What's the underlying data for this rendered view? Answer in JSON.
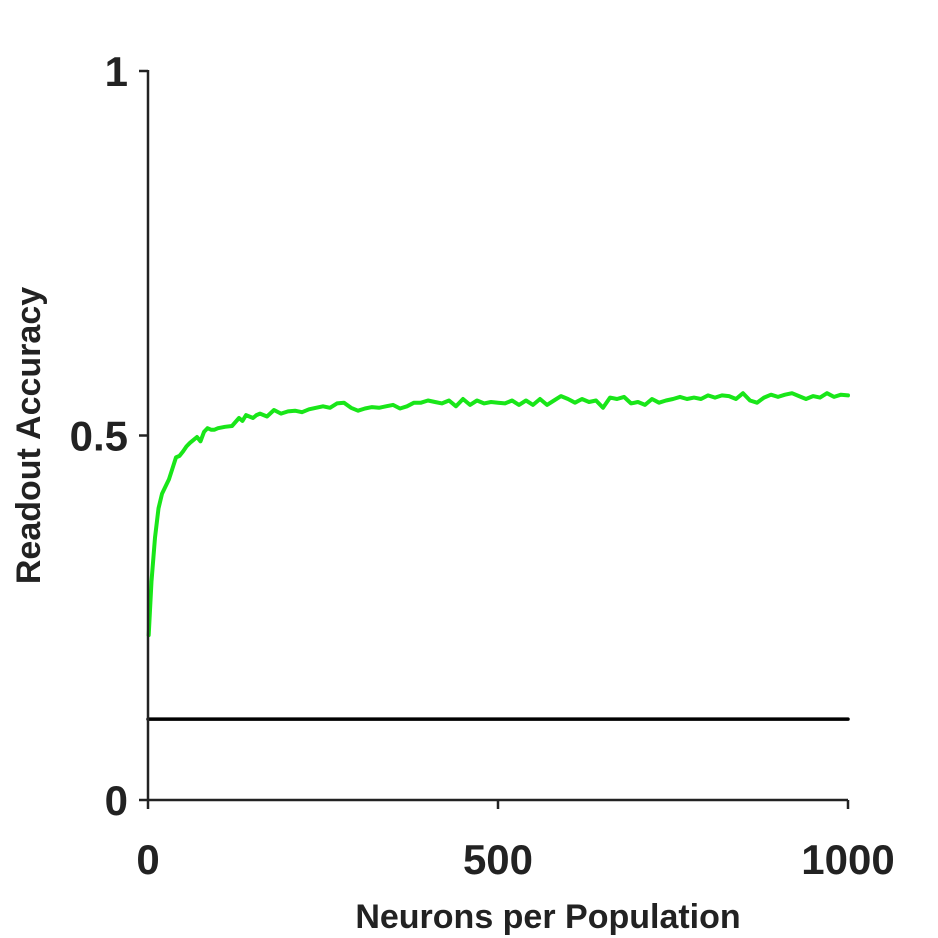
{
  "chart_data": {
    "type": "line",
    "title": "",
    "xlabel": "Neurons per Population",
    "ylabel": "Readout Accuracy",
    "xlim": [
      0,
      1000
    ],
    "ylim": [
      0,
      1
    ],
    "x_ticks": [
      0,
      500,
      1000
    ],
    "y_ticks": [
      0,
      0.5,
      1
    ],
    "x_tick_labels": [
      "0",
      "500",
      "1000"
    ],
    "y_tick_labels": [
      "0",
      "0.5",
      "1"
    ],
    "grid": false,
    "legend": "none",
    "series": [
      {
        "color": "#19e619",
        "x": [
          1,
          5,
          10,
          15,
          20,
          25,
          30,
          35,
          40,
          45,
          50,
          55,
          60,
          65,
          70,
          75,
          80,
          85,
          90,
          95,
          100,
          110,
          120,
          130,
          135,
          140,
          150,
          155,
          160,
          170,
          180,
          190,
          200,
          210,
          220,
          230,
          240,
          250,
          260,
          270,
          280,
          290,
          300,
          310,
          320,
          330,
          340,
          350,
          360,
          370,
          380,
          390,
          400,
          410,
          420,
          430,
          440,
          450,
          460,
          470,
          480,
          490,
          500,
          510,
          520,
          530,
          540,
          550,
          560,
          570,
          580,
          590,
          600,
          610,
          620,
          630,
          640,
          650,
          660,
          670,
          680,
          690,
          700,
          710,
          720,
          730,
          740,
          750,
          760,
          770,
          780,
          790,
          800,
          810,
          820,
          830,
          840,
          850,
          860,
          870,
          880,
          890,
          900,
          910,
          920,
          930,
          940,
          950,
          960,
          970,
          980,
          990,
          1000
        ],
        "values": [
          0.226,
          0.3,
          0.36,
          0.4,
          0.42,
          0.43,
          0.44,
          0.455,
          0.47,
          0.472,
          0.478,
          0.485,
          0.49,
          0.494,
          0.498,
          0.492,
          0.505,
          0.51,
          0.508,
          0.508,
          0.51,
          0.512,
          0.513,
          0.524,
          0.52,
          0.528,
          0.524,
          0.528,
          0.53,
          0.526,
          0.535,
          0.53,
          0.533,
          0.534,
          0.532,
          0.536,
          0.538,
          0.54,
          0.538,
          0.544,
          0.545,
          0.538,
          0.534,
          0.537,
          0.539,
          0.538,
          0.54,
          0.542,
          0.537,
          0.54,
          0.545,
          0.545,
          0.548,
          0.546,
          0.544,
          0.548,
          0.54,
          0.55,
          0.542,
          0.548,
          0.544,
          0.546,
          0.545,
          0.544,
          0.548,
          0.542,
          0.548,
          0.542,
          0.55,
          0.542,
          0.548,
          0.554,
          0.55,
          0.545,
          0.55,
          0.546,
          0.548,
          0.538,
          0.552,
          0.55,
          0.553,
          0.544,
          0.546,
          0.542,
          0.55,
          0.545,
          0.548,
          0.55,
          0.553,
          0.55,
          0.552,
          0.55,
          0.555,
          0.552,
          0.555,
          0.554,
          0.55,
          0.558,
          0.548,
          0.545,
          0.552,
          0.556,
          0.553,
          0.556,
          0.558,
          0.554,
          0.55,
          0.554,
          0.552,
          0.558,
          0.553,
          0.556,
          0.555
        ]
      },
      {
        "color": "#000000",
        "x": [
          0,
          1000
        ],
        "values": [
          0.111,
          0.111
        ]
      }
    ]
  }
}
